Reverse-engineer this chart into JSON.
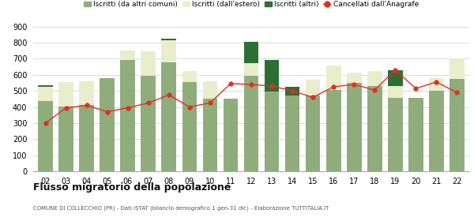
{
  "years": [
    "02",
    "03",
    "04",
    "05",
    "06",
    "07",
    "08",
    "09",
    "10",
    "11",
    "12",
    "13",
    "14",
    "15",
    "16",
    "17",
    "18",
    "19",
    "20",
    "21",
    "22"
  ],
  "iscritti_comuni": [
    435,
    405,
    410,
    580,
    690,
    595,
    675,
    555,
    450,
    450,
    595,
    495,
    470,
    470,
    505,
    550,
    530,
    455,
    455,
    500,
    575
  ],
  "iscritti_estero": [
    90,
    150,
    150,
    0,
    60,
    150,
    140,
    70,
    110,
    0,
    75,
    0,
    0,
    100,
    155,
    65,
    95,
    75,
    0,
    80,
    125
  ],
  "iscritti_altri": [
    10,
    0,
    0,
    0,
    0,
    0,
    10,
    0,
    0,
    0,
    135,
    195,
    55,
    0,
    0,
    0,
    0,
    100,
    0,
    0,
    0
  ],
  "cancellati": [
    300,
    395,
    410,
    370,
    395,
    425,
    475,
    400,
    425,
    545,
    540,
    530,
    500,
    460,
    525,
    540,
    505,
    630,
    515,
    555,
    490
  ],
  "color_comuni": "#8fad7c",
  "color_estero": "#e8edcc",
  "color_altri": "#2d6e35",
  "color_cancellati": "#e03020",
  "title": "Flusso migratorio della popolazione",
  "subtitle": "COMUNE DI COLLECCHIO (PR) - Dati ISTAT (bilancio demografico 1 gen-31 dic) - Elaborazione TUTTITALIA.IT",
  "legend_labels": [
    "Iscritti (da altri comuni)",
    "Iscritti (dall'estero)",
    "Iscritti (altri)",
    "Cancellati dall'Anagrafe"
  ],
  "ylim": [
    0,
    900
  ],
  "yticks": [
    0,
    100,
    200,
    300,
    400,
    500,
    600,
    700,
    800,
    900
  ],
  "bg_color": "#ffffff",
  "grid_color": "#cccccc"
}
